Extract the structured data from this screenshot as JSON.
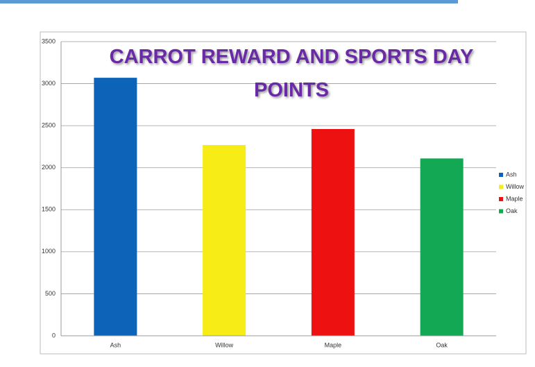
{
  "chart_data": {
    "type": "bar",
    "title": "CARROT REWARD AND SPORTS DAY POINTS",
    "categories": [
      "Ash",
      "Willow",
      "Maple",
      "Oak"
    ],
    "series": [
      {
        "name": "Ash",
        "color": "#0d63b8",
        "values": [
          3070,
          null,
          null,
          null
        ]
      },
      {
        "name": "Willow",
        "color": "#f7ec16",
        "values": [
          null,
          2270,
          null,
          null
        ]
      },
      {
        "name": "Maple",
        "color": "#ee1111",
        "values": [
          null,
          null,
          2460,
          null
        ]
      },
      {
        "name": "Oak",
        "color": "#12a854",
        "values": [
          null,
          null,
          null,
          2110
        ]
      }
    ],
    "ylim": [
      0,
      3500
    ],
    "yticks": [
      0,
      500,
      1000,
      1500,
      2000,
      2500,
      3000,
      3500
    ],
    "grid": true,
    "legend": "right"
  }
}
